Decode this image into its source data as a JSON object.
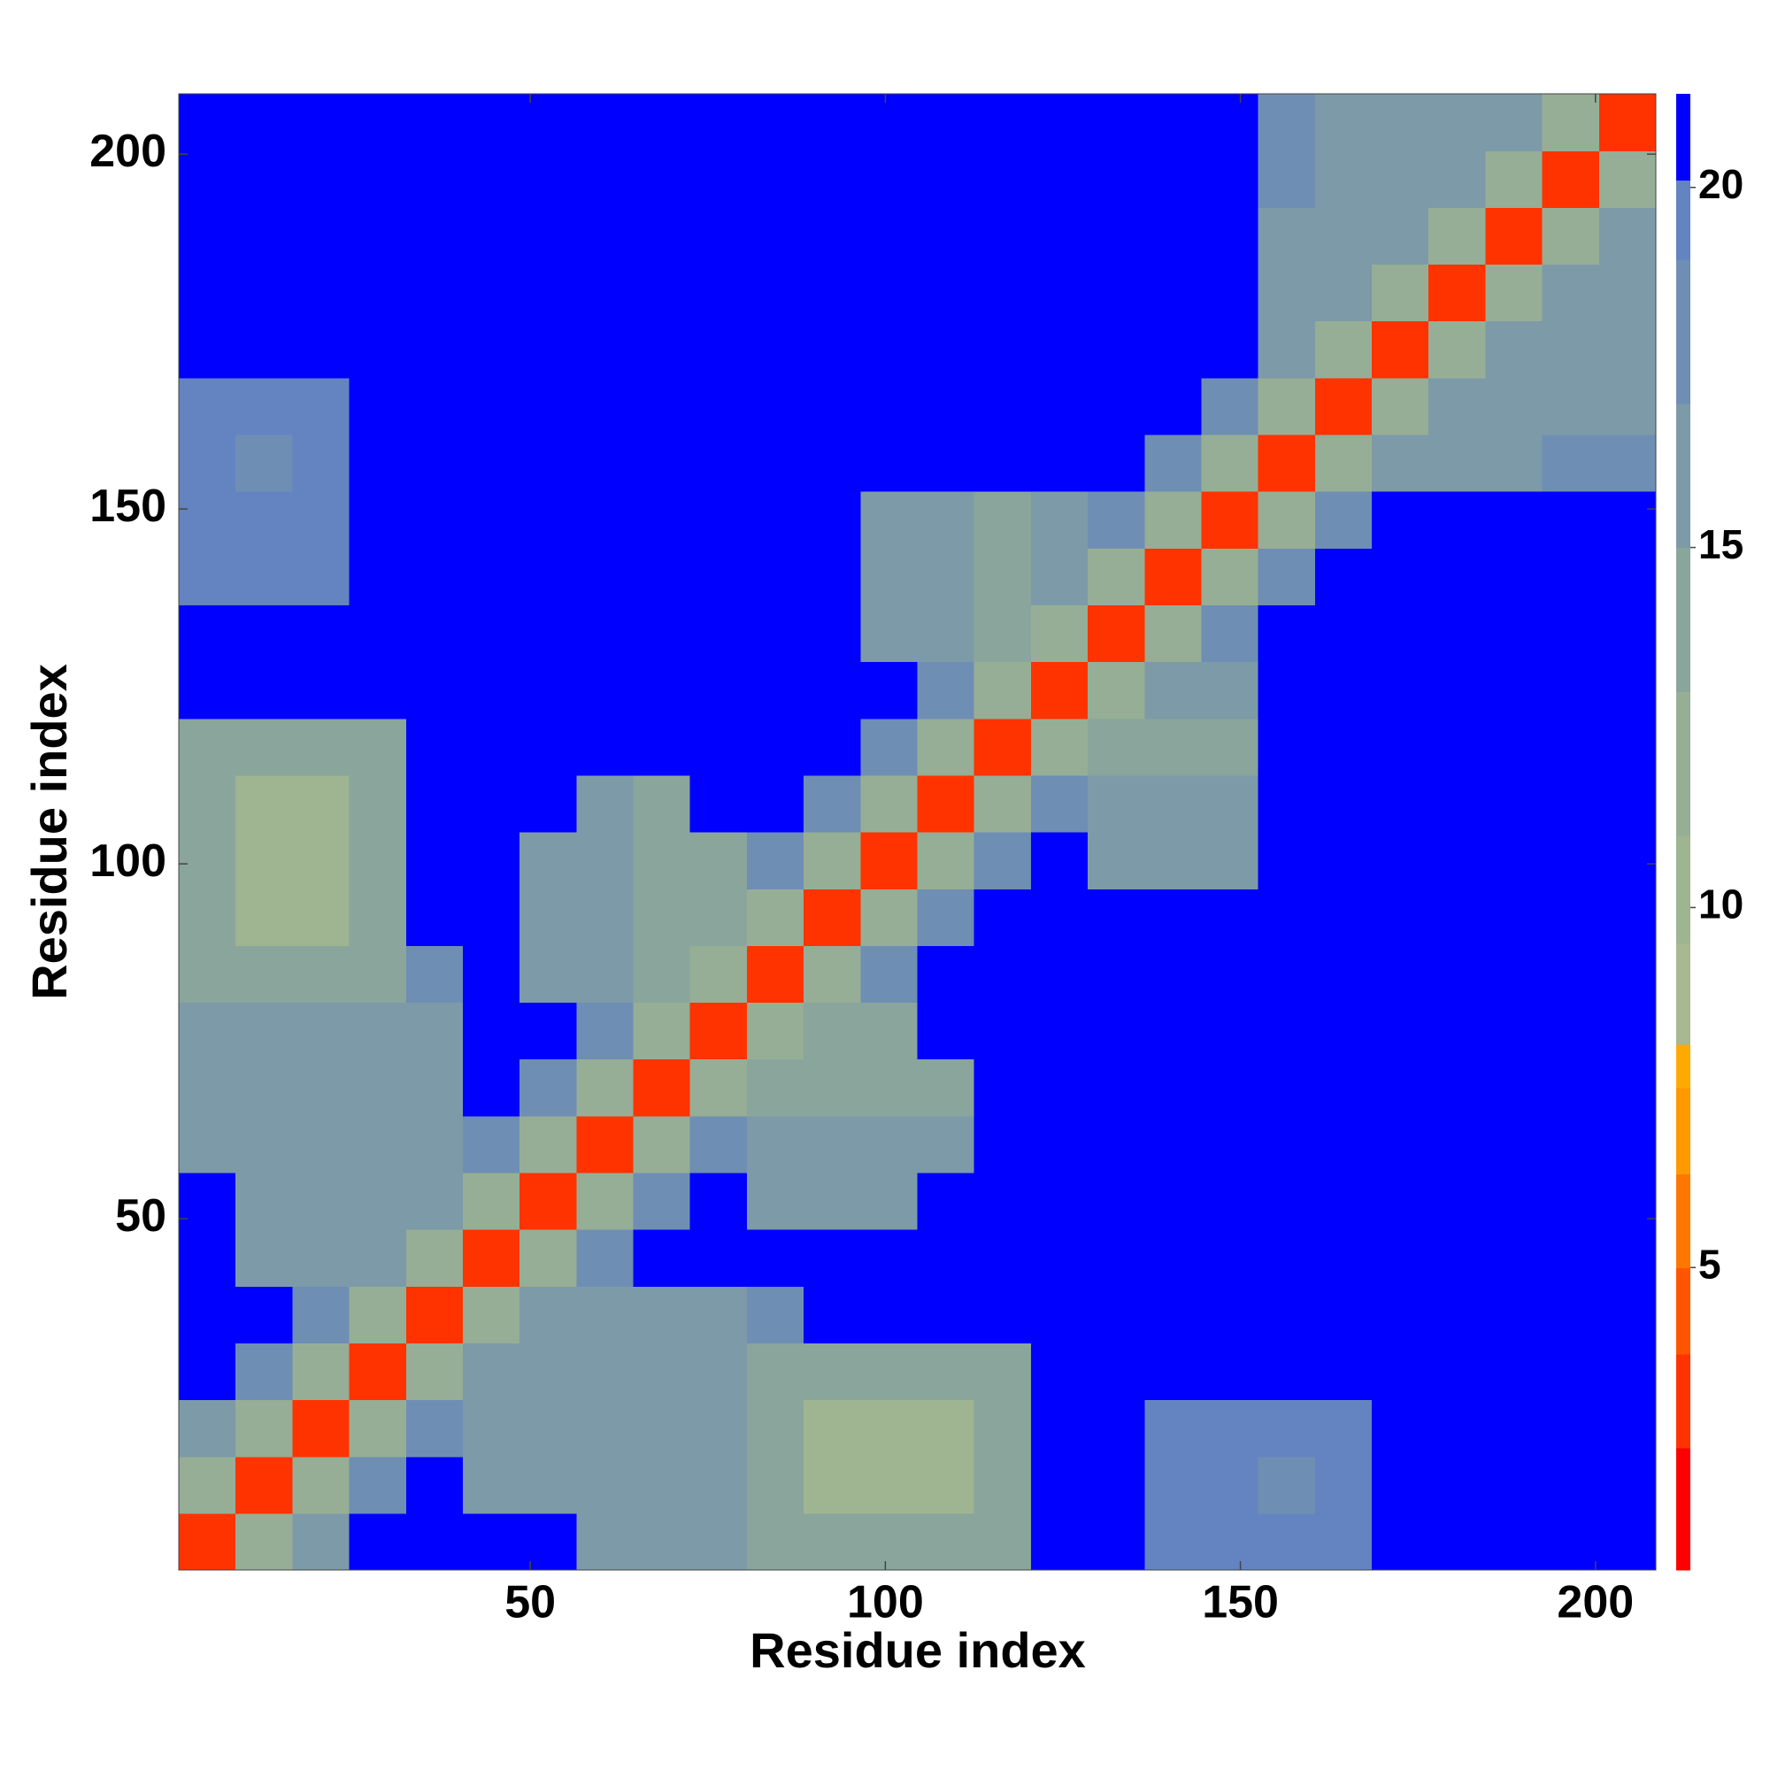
{
  "chart_data": {
    "type": "heatmap",
    "x_label": "Residue index",
    "y_label": "Residue index",
    "xlim": [
      0.5,
      208.5
    ],
    "ylim": [
      0.5,
      208.5
    ],
    "xticks": [
      50,
      100,
      150,
      200
    ],
    "yticks": [
      50,
      100,
      150,
      200
    ],
    "x_bins": [
      0.5,
      8.5,
      16.5,
      24.5,
      32.5,
      40.5,
      48.5,
      56.5,
      64.5,
      72.5,
      80.5,
      88.5,
      96.5,
      104.5,
      112.5,
      120.5,
      128.5,
      136.5,
      144.5,
      152.5,
      160.5,
      168.5,
      176.5,
      184.5,
      192.5,
      200.5,
      208.5
    ],
    "y_bins": [
      0.5,
      8.5,
      16.5,
      24.5,
      32.5,
      40.5,
      48.5,
      56.5,
      64.5,
      72.5,
      80.5,
      88.5,
      96.5,
      104.5,
      112.5,
      120.5,
      128.5,
      136.5,
      144.5,
      152.5,
      160.5,
      168.5,
      176.5,
      184.5,
      192.5,
      200.5,
      208.5
    ],
    "zlim": [
      0.8,
      21.3
    ],
    "zticks": [
      5,
      10,
      15,
      20
    ],
    "colorscale": [
      {
        "value": 0.8,
        "color": "#ff0000"
      },
      {
        "value": 2.5,
        "color": "#ff3300"
      },
      {
        "value": 3.8,
        "color": "#ff5500"
      },
      {
        "value": 5.0,
        "color": "#ff7700"
      },
      {
        "value": 6.3,
        "color": "#ff9900"
      },
      {
        "value": 7.5,
        "color": "#ffaa00"
      },
      {
        "value": 8.1,
        "color": "#a8b890"
      },
      {
        "value": 9.5,
        "color": "#9fb491"
      },
      {
        "value": 11,
        "color": "#96ae95"
      },
      {
        "value": 13,
        "color": "#8aa59c"
      },
      {
        "value": 15,
        "color": "#7d9aa8"
      },
      {
        "value": 17,
        "color": "#6f8eb4"
      },
      {
        "value": 19,
        "color": "#6384c0"
      },
      {
        "value": 20.1,
        "color": "#0000ff"
      }
    ],
    "z": [
      [
        3,
        12,
        15,
        21,
        21,
        21,
        21,
        15,
        15,
        15,
        14,
        14,
        14,
        14,
        14,
        21,
        21,
        19,
        19,
        19,
        19,
        21,
        21,
        21,
        21,
        21
      ],
      [
        12,
        3,
        12,
        18,
        21,
        16,
        16,
        15,
        15,
        15,
        14,
        10,
        10,
        10,
        14,
        21,
        21,
        19,
        19,
        17,
        19,
        21,
        21,
        21,
        21,
        21
      ],
      [
        15,
        12,
        3,
        12,
        18,
        16,
        16,
        15,
        15,
        15,
        14,
        10,
        10,
        10,
        14,
        21,
        21,
        19,
        19,
        19,
        19,
        21,
        21,
        21,
        21,
        21
      ],
      [
        21,
        18,
        12,
        3,
        12,
        16,
        16,
        15,
        15,
        15,
        14,
        14,
        14,
        14,
        14,
        21,
        21,
        21,
        21,
        21,
        21,
        21,
        21,
        21,
        21,
        21
      ],
      [
        21,
        21,
        18,
        12,
        3,
        12,
        15,
        15,
        15,
        15,
        18,
        21,
        21,
        21,
        21,
        21,
        21,
        21,
        21,
        21,
        21,
        21,
        21,
        21,
        21,
        21
      ],
      [
        21,
        16,
        16,
        16,
        12,
        3,
        12,
        18,
        21,
        21,
        21,
        21,
        21,
        21,
        21,
        21,
        21,
        21,
        21,
        21,
        21,
        21,
        21,
        21,
        21,
        21
      ],
      [
        21,
        16,
        16,
        16,
        15,
        12,
        3,
        12,
        18,
        21,
        16,
        16,
        16,
        21,
        21,
        21,
        21,
        21,
        21,
        21,
        21,
        21,
        21,
        21,
        21,
        21
      ],
      [
        15,
        15,
        15,
        15,
        15,
        18,
        12,
        3,
        12,
        18,
        15,
        15,
        15,
        15,
        21,
        21,
        21,
        21,
        21,
        21,
        21,
        21,
        21,
        21,
        21,
        21
      ],
      [
        15,
        15,
        15,
        15,
        15,
        21,
        18,
        12,
        3,
        12,
        13,
        14,
        14,
        14,
        21,
        21,
        21,
        21,
        21,
        21,
        21,
        21,
        21,
        21,
        21,
        21
      ],
      [
        15,
        15,
        15,
        15,
        15,
        21,
        21,
        18,
        12,
        3,
        12,
        14,
        14,
        21,
        21,
        21,
        21,
        21,
        21,
        21,
        21,
        21,
        21,
        21,
        21,
        21
      ],
      [
        14,
        14,
        14,
        14,
        18,
        21,
        16,
        15,
        13,
        12,
        3,
        12,
        18,
        21,
        21,
        21,
        21,
        21,
        21,
        21,
        21,
        21,
        21,
        21,
        21,
        21
      ],
      [
        14,
        10,
        10,
        14,
        21,
        21,
        16,
        15,
        14,
        14,
        12,
        3,
        12,
        18,
        21,
        21,
        21,
        21,
        21,
        21,
        21,
        21,
        21,
        21,
        21,
        21
      ],
      [
        14,
        10,
        10,
        14,
        21,
        21,
        16,
        15,
        14,
        14,
        18,
        12,
        3,
        12,
        18,
        21,
        16,
        16,
        16,
        21,
        21,
        21,
        21,
        21,
        21,
        21
      ],
      [
        14,
        10,
        10,
        14,
        21,
        21,
        21,
        15,
        14,
        21,
        21,
        18,
        12,
        3,
        12,
        18,
        15,
        15,
        15,
        21,
        21,
        21,
        21,
        21,
        21,
        21
      ],
      [
        14,
        14,
        14,
        14,
        21,
        21,
        21,
        21,
        21,
        21,
        21,
        21,
        18,
        12,
        3,
        12,
        14,
        14,
        14,
        21,
        21,
        21,
        21,
        21,
        21,
        21
      ],
      [
        21,
        21,
        21,
        21,
        21,
        21,
        21,
        21,
        21,
        21,
        21,
        21,
        21,
        18,
        12,
        3,
        12,
        15,
        15,
        21,
        21,
        21,
        21,
        21,
        21,
        21
      ],
      [
        21,
        21,
        21,
        21,
        21,
        21,
        21,
        21,
        21,
        21,
        21,
        21,
        16,
        15,
        14,
        12,
        3,
        12,
        18,
        21,
        21,
        21,
        21,
        21,
        21,
        21
      ],
      [
        19,
        19,
        19,
        21,
        21,
        21,
        21,
        21,
        21,
        21,
        21,
        21,
        16,
        15,
        14,
        15,
        12,
        3,
        12,
        18,
        21,
        21,
        21,
        21,
        21,
        21
      ],
      [
        19,
        19,
        19,
        21,
        21,
        21,
        21,
        21,
        21,
        21,
        21,
        21,
        16,
        15,
        14,
        15,
        18,
        12,
        3,
        12,
        18,
        21,
        21,
        21,
        21,
        21
      ],
      [
        19,
        17,
        19,
        21,
        21,
        21,
        21,
        21,
        21,
        21,
        21,
        21,
        21,
        21,
        21,
        21,
        21,
        18,
        12,
        3,
        12,
        15,
        15,
        15,
        18,
        18
      ],
      [
        19,
        19,
        19,
        21,
        21,
        21,
        21,
        21,
        21,
        21,
        21,
        21,
        21,
        21,
        21,
        21,
        21,
        21,
        18,
        12,
        3,
        12,
        15,
        15,
        16,
        16
      ],
      [
        21,
        21,
        21,
        21,
        21,
        21,
        21,
        21,
        21,
        21,
        21,
        21,
        21,
        21,
        21,
        21,
        21,
        21,
        21,
        15,
        12,
        3,
        12,
        15,
        16,
        16
      ],
      [
        21,
        21,
        21,
        21,
        21,
        21,
        21,
        21,
        21,
        21,
        21,
        21,
        21,
        21,
        21,
        21,
        21,
        21,
        21,
        15,
        15,
        12,
        3,
        12,
        15,
        15
      ],
      [
        21,
        21,
        21,
        21,
        21,
        21,
        21,
        21,
        21,
        21,
        21,
        21,
        21,
        21,
        21,
        21,
        21,
        21,
        21,
        15,
        15,
        15,
        12,
        3,
        12,
        15
      ],
      [
        21,
        21,
        21,
        21,
        21,
        21,
        21,
        21,
        21,
        21,
        21,
        21,
        21,
        21,
        21,
        21,
        21,
        21,
        21,
        18,
        16,
        16,
        15,
        12,
        3,
        12
      ],
      [
        21,
        21,
        21,
        21,
        21,
        21,
        21,
        21,
        21,
        21,
        21,
        21,
        21,
        21,
        21,
        21,
        21,
        21,
        21,
        18,
        16,
        16,
        15,
        15,
        12,
        3
      ]
    ]
  }
}
